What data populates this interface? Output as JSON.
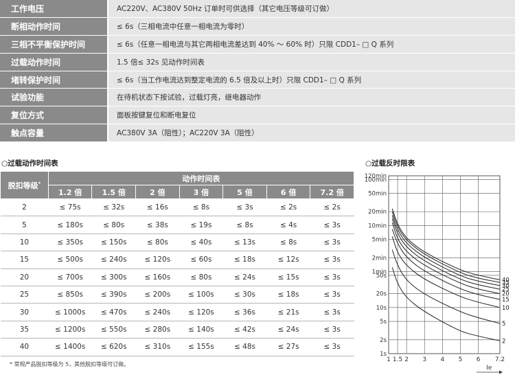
{
  "spec_rows": [
    {
      "label": "工作电压",
      "value": "AC220V、AC380V 50Hz 订单时可供选择（其它电压等级可订做）"
    },
    {
      "label": "断相动作时间",
      "value": "≤ 6s（三相电流中任意一相电流为零时）"
    },
    {
      "label": "三相不平衡保护时间",
      "value": "≤ 6s（任意一相电流与其它两相电流差达到 40% ～ 60% 时）只限 CDD1– □ Q 系列"
    },
    {
      "label": "过载动作时间",
      "value": "1.5 倍≤ 32s 见动作时间表"
    },
    {
      "label": "堵转保护时间",
      "value": "≤ 6s（当工作电流达到整定电流的 6.5 倍及以上时）只限 CDD1– □ Q 系列"
    },
    {
      "label": "试验功能",
      "value": "在待机状态下按试验，过载灯亮，继电器动作"
    },
    {
      "label": "复位方式",
      "value": "面板按键复位和断电复位"
    },
    {
      "label": "触点容量",
      "value": "AC380V 3A（阻性）；AC220V 3A（阻性）"
    }
  ],
  "table_title": "○过载动作时间表",
  "chart_title": "○过载反时限表",
  "overload_table": {
    "row_header": "脱扣等级",
    "row_header_mark": "*",
    "group_header": "动作时间表",
    "columns": [
      "1.2 倍",
      "1.5 倍",
      "2 倍",
      "3 倍",
      "5 倍",
      "6 倍",
      "7.2 倍"
    ],
    "rows": [
      {
        "level": "2",
        "cells": [
          "≤ 75s",
          "≤ 32s",
          "≤ 16s",
          "≤ 8s",
          "≤ 3s",
          "≤ 2s",
          "≤ 2s"
        ]
      },
      {
        "level": "5",
        "cells": [
          "≤ 180s",
          "≤ 80s",
          "≤ 38s",
          "≤ 19s",
          "≤ 8s",
          "≤ 4s",
          "≤ 3s"
        ]
      },
      {
        "level": "10",
        "cells": [
          "≤ 350s",
          "≤ 150s",
          "≤ 80s",
          "≤ 40s",
          "≤ 13s",
          "≤ 8s",
          "≤ 3s"
        ]
      },
      {
        "level": "15",
        "cells": [
          "≤ 500s",
          "≤ 240s",
          "≤ 120s",
          "≤ 60s",
          "≤ 18s",
          "≤ 12s",
          "≤ 3s"
        ]
      },
      {
        "level": "20",
        "cells": [
          "≤ 700s",
          "≤ 300s",
          "≤ 160s",
          "≤ 80s",
          "≤ 24s",
          "≤ 15s",
          "≤ 3s"
        ]
      },
      {
        "level": "25",
        "cells": [
          "≤ 850s",
          "≤ 390s",
          "≤ 200s",
          "≤ 100s",
          "≤ 30s",
          "≤ 18s",
          "≤ 3s"
        ]
      },
      {
        "level": "30",
        "cells": [
          "≤ 1000s",
          "≤ 470s",
          "≤ 240s",
          "≤ 120s",
          "≤ 36s",
          "≤ 21s",
          "≤ 3s"
        ]
      },
      {
        "level": "35",
        "cells": [
          "≤ 1200s",
          "≤ 550s",
          "≤ 280s",
          "≤ 140s",
          "≤ 42s",
          "≤ 24s",
          "≤ 3s"
        ]
      },
      {
        "level": "40",
        "cells": [
          "≤ 1400s",
          "≤ 620s",
          "≤ 310s",
          "≤ 155s",
          "≤ 48s",
          "≤ 27s",
          "≤ 3s"
        ]
      }
    ]
  },
  "footnote": "* 常规产品脱扣等级为 5，其他脱扣等级可订做。",
  "chart_data": {
    "type": "line",
    "xlabel": "Ie",
    "x_ticks": [
      {
        "value": 1,
        "label": "1"
      },
      {
        "value": 1.5,
        "label": "1.5"
      },
      {
        "value": 2,
        "label": "2"
      },
      {
        "value": 3,
        "label": "3"
      },
      {
        "value": 4,
        "label": "4"
      },
      {
        "value": 5,
        "label": "5"
      },
      {
        "value": 6,
        "label": "6"
      },
      {
        "value": 7.2,
        "label": "7.2"
      }
    ],
    "y_scale": "log",
    "y_unit": "s",
    "y_ticks": [
      {
        "value": 1,
        "label": "1s"
      },
      {
        "value": 2,
        "label": "2s"
      },
      {
        "value": 5,
        "label": "5s"
      },
      {
        "value": 10,
        "label": "10s"
      },
      {
        "value": 20,
        "label": "20s"
      },
      {
        "value": 50,
        "label": "50s"
      },
      {
        "value": 60,
        "label": "1min"
      },
      {
        "value": 120,
        "label": "2min"
      },
      {
        "value": 300,
        "label": "5min"
      },
      {
        "value": 600,
        "label": "10min"
      },
      {
        "value": 1200,
        "label": "20min"
      },
      {
        "value": 3000,
        "label": "50min"
      },
      {
        "value": 6000,
        "label": "100min"
      },
      {
        "value": 7200,
        "label": "120min"
      }
    ],
    "xlim": [
      1,
      7.2
    ],
    "ylim": [
      1,
      7200
    ],
    "grid": true,
    "series": [
      {
        "name": "2",
        "points": [
          [
            1.2,
            75
          ],
          [
            1.5,
            32
          ],
          [
            2,
            16
          ],
          [
            3,
            8
          ],
          [
            5,
            3
          ],
          [
            6,
            2.4
          ],
          [
            7.2,
            1.9
          ]
        ]
      },
      {
        "name": "5",
        "points": [
          [
            1.2,
            180
          ],
          [
            1.5,
            80
          ],
          [
            2,
            38
          ],
          [
            3,
            19
          ],
          [
            5,
            8
          ],
          [
            6,
            6
          ],
          [
            7.2,
            4.5
          ]
        ]
      },
      {
        "name": "10",
        "points": [
          [
            1.2,
            350
          ],
          [
            1.5,
            150
          ],
          [
            2,
            80
          ],
          [
            3,
            40
          ],
          [
            5,
            17
          ],
          [
            6,
            13
          ],
          [
            7.2,
            10
          ]
        ]
      },
      {
        "name": "15",
        "points": [
          [
            1.2,
            500
          ],
          [
            1.5,
            240
          ],
          [
            2,
            120
          ],
          [
            3,
            60
          ],
          [
            5,
            25
          ],
          [
            6,
            19
          ],
          [
            7.2,
            15
          ]
        ]
      },
      {
        "name": "20",
        "points": [
          [
            1.2,
            700
          ],
          [
            1.5,
            300
          ],
          [
            2,
            160
          ],
          [
            3,
            80
          ],
          [
            5,
            33
          ],
          [
            6,
            25
          ],
          [
            7.2,
            20
          ]
        ]
      },
      {
        "name": "25",
        "points": [
          [
            1.2,
            850
          ],
          [
            1.5,
            390
          ],
          [
            2,
            200
          ],
          [
            3,
            100
          ],
          [
            5,
            40
          ],
          [
            6,
            31
          ],
          [
            7.2,
            25
          ]
        ]
      },
      {
        "name": "30",
        "points": [
          [
            1.2,
            1000
          ],
          [
            1.5,
            470
          ],
          [
            2,
            240
          ],
          [
            3,
            120
          ],
          [
            5,
            48
          ],
          [
            6,
            37
          ],
          [
            7.2,
            30
          ]
        ]
      },
      {
        "name": "35",
        "points": [
          [
            1.2,
            1200
          ],
          [
            1.5,
            550
          ],
          [
            2,
            280
          ],
          [
            3,
            140
          ],
          [
            5,
            56
          ],
          [
            6,
            43
          ],
          [
            7.2,
            35
          ]
        ]
      },
      {
        "name": "40",
        "points": [
          [
            1.2,
            1400
          ],
          [
            1.5,
            620
          ],
          [
            2,
            310
          ],
          [
            3,
            155
          ],
          [
            5,
            64
          ],
          [
            6,
            50
          ],
          [
            7.2,
            40
          ]
        ]
      }
    ],
    "colors": {
      "line": "#222222",
      "grid": "#555555",
      "background": "#ffffff"
    }
  }
}
